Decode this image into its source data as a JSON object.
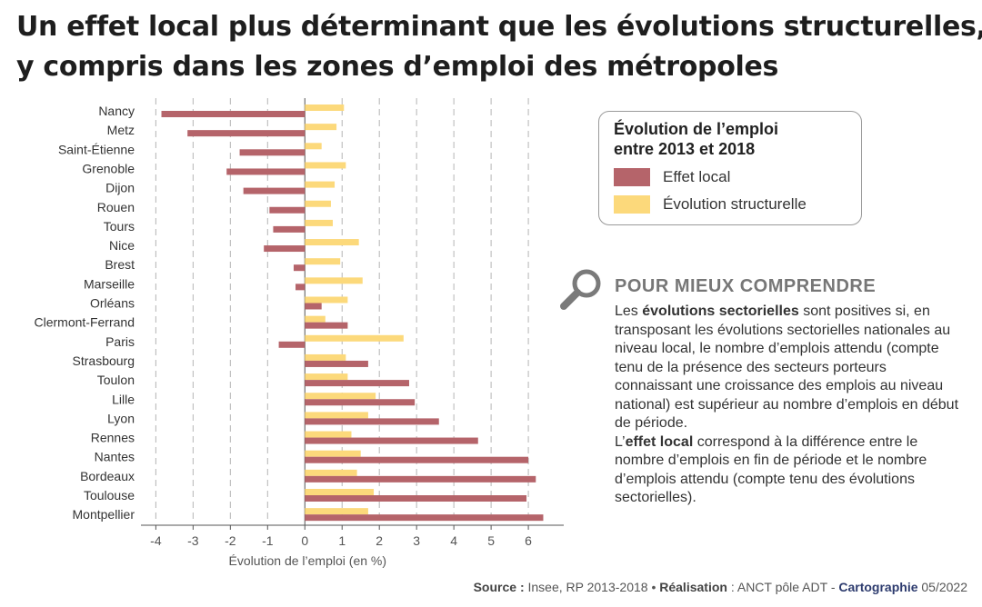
{
  "title_line1": "Un effet local plus déterminant que les évolutions structurelles,",
  "title_line2": "y compris dans les zones d’emploi des métropoles",
  "legend": {
    "title_line1": "Évolution de l’emploi",
    "title_line2": "entre 2013 et 2018",
    "local_label": "Effet local",
    "struct_label": "Évolution structurelle"
  },
  "info": {
    "title": "POUR MIEUX COMPRENDRE",
    "p1_before": "Les ",
    "p1_bold": "évolutions sectorielles",
    "p1_after": " sont positives si, en transposant les évolutions sectorielles nationales au niveau local, le nombre d’emplois attendu (compte tenu de la présence des secteurs porteurs connaissant une croissance des emplois au niveau national)  est supérieur au nombre d’emplois en début de période.",
    "p2_before": "L’",
    "p2_bold": "effet local",
    "p2_after": " correspond à la différence entre le nombre d’emplois en fin de période et le nombre d’emplois attendu (compte tenu des évolutions sectorielles)."
  },
  "source": {
    "source_label": "Source :",
    "source_text": " Insee, RP 2013-2018 • ",
    "realisation_label": "Réalisation",
    "realisation_text": " : ANCT pôle ADT - ",
    "carto_label": "Cartographie",
    "carto_text": " 05/2022"
  },
  "colors": {
    "local": "#b5646a",
    "structurel": "#fcd97b",
    "grid": "#b5b5b5",
    "axis": "#555555"
  },
  "chart_data": {
    "type": "bar",
    "orientation": "horizontal",
    "categories": [
      "Nancy",
      "Metz",
      "Saint-Étienne",
      "Grenoble",
      "Dijon",
      "Rouen",
      "Tours",
      "Nice",
      "Brest",
      "Marseille",
      "Orléans",
      "Clermont-Ferrand",
      "Paris",
      "Strasbourg",
      "Toulon",
      "Lille",
      "Lyon",
      "Rennes",
      "Nantes",
      "Bordeaux",
      "Toulouse",
      "Montpellier"
    ],
    "series": [
      {
        "name": "Évolution structurelle",
        "values": [
          1.05,
          0.85,
          0.45,
          1.1,
          0.8,
          0.7,
          0.75,
          1.45,
          0.95,
          1.55,
          1.15,
          0.55,
          2.65,
          1.1,
          1.15,
          1.9,
          1.7,
          1.25,
          1.5,
          1.4,
          1.85,
          1.7
        ]
      },
      {
        "name": "Effet local",
        "values": [
          -3.85,
          -3.15,
          -1.75,
          -2.1,
          -1.65,
          -0.95,
          -0.85,
          -1.1,
          -0.3,
          -0.25,
          0.45,
          1.15,
          -0.7,
          1.7,
          2.8,
          2.95,
          3.6,
          4.65,
          6.0,
          6.2,
          5.95,
          6.4
        ]
      }
    ],
    "xlabel": "Évolution de l’emploi (en %)",
    "xticks": [
      -4,
      -3,
      -2,
      -1,
      0,
      1,
      2,
      3,
      4,
      5,
      6
    ],
    "xlim": [
      -4.4,
      6.95
    ],
    "grid": true,
    "legend_position": "top-right"
  }
}
